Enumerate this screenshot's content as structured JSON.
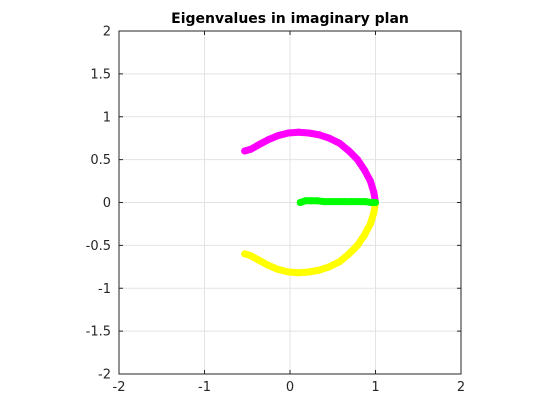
{
  "chart_data": {
    "type": "scatter",
    "title": "Eigenvalues in imaginary plan",
    "xlabel": "",
    "ylabel": "",
    "xlim": [
      -2,
      2
    ],
    "ylim": [
      -2,
      2
    ],
    "xticks": [
      -2,
      -1,
      0,
      1,
      2
    ],
    "yticks": [
      -2,
      -1.5,
      -1,
      -0.5,
      0,
      0.5,
      1,
      1.5,
      2
    ],
    "xtick_labels": [
      "-2",
      "-1",
      "0",
      "1",
      "2"
    ],
    "ytick_labels": [
      "-2",
      "-1.5",
      "-1",
      "-0.5",
      "0",
      "0.5",
      "1",
      "1.5",
      "2"
    ],
    "grid": true,
    "series": [
      {
        "color": "#ff00ff",
        "x": [
          1.0,
          0.98,
          0.94,
          0.87,
          0.79,
          0.69,
          0.58,
          0.46,
          0.34,
          0.22,
          0.1,
          -0.02,
          -0.14,
          -0.26,
          -0.37,
          -0.46,
          -0.53
        ],
        "y": [
          0.0,
          0.12,
          0.25,
          0.38,
          0.5,
          0.6,
          0.69,
          0.75,
          0.79,
          0.81,
          0.82,
          0.81,
          0.78,
          0.73,
          0.67,
          0.62,
          0.6
        ]
      },
      {
        "color": "#ffff00",
        "x": [
          1.0,
          0.98,
          0.94,
          0.87,
          0.79,
          0.69,
          0.58,
          0.46,
          0.34,
          0.22,
          0.1,
          -0.02,
          -0.14,
          -0.26,
          -0.37,
          -0.46,
          -0.53
        ],
        "y": [
          0.0,
          -0.12,
          -0.25,
          -0.38,
          -0.5,
          -0.6,
          -0.69,
          -0.75,
          -0.79,
          -0.81,
          -0.82,
          -0.81,
          -0.78,
          -0.73,
          -0.67,
          -0.62,
          -0.6
        ]
      },
      {
        "color": "#00ff00",
        "x": [
          0.12,
          0.18,
          0.25,
          0.32,
          0.4,
          0.48,
          0.56,
          0.64,
          0.72,
          0.8,
          0.88,
          0.95,
          1.0
        ],
        "y": [
          0.0,
          0.02,
          0.02,
          0.02,
          0.01,
          0.01,
          0.01,
          0.01,
          0.01,
          0.01,
          0.01,
          0.0,
          0.0
        ]
      }
    ]
  }
}
